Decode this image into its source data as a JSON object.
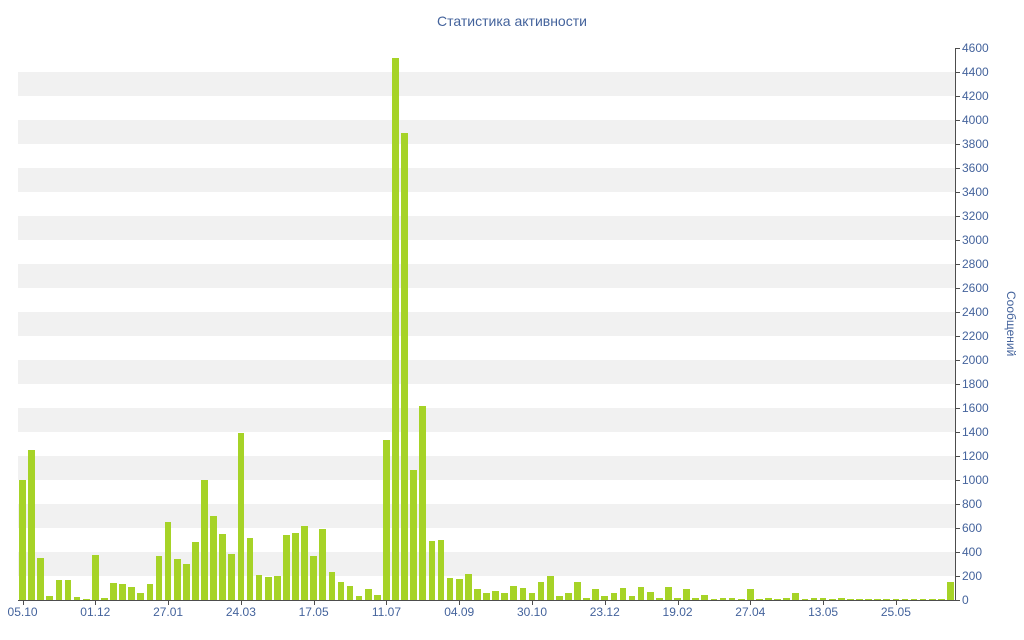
{
  "window": {
    "title": "Статистика активности"
  },
  "chart_data": {
    "type": "bar",
    "title": "Статистика активности",
    "xlabel": "",
    "ylabel": "Сообщений",
    "ylim": [
      0,
      4600
    ],
    "y_tick_step": 200,
    "grid": "striped-bands",
    "legend": "none",
    "bar_color": "#a6d327",
    "label_color": "#44639c",
    "axis_color": "#4d4d4d",
    "stripe_color": "#f1f1f1",
    "x_label_every": 8,
    "x_tick_labels": [
      "05.10",
      "01.12",
      "27.01",
      "24.03",
      "17.05",
      "11.07",
      "04.09",
      "30.10",
      "23.12",
      "19.02",
      "27.04",
      "13.05",
      "25.05"
    ],
    "values": [
      1000,
      1250,
      350,
      30,
      165,
      165,
      25,
      10,
      375,
      20,
      140,
      130,
      110,
      60,
      130,
      370,
      650,
      340,
      300,
      480,
      1000,
      700,
      550,
      380,
      1390,
      520,
      210,
      195,
      200,
      545,
      560,
      620,
      370,
      590,
      230,
      150,
      120,
      30,
      90,
      40,
      1330,
      4520,
      3890,
      1080,
      1620,
      490,
      500,
      180,
      175,
      220,
      90,
      60,
      75,
      60,
      120,
      100,
      60,
      150,
      200,
      30,
      60,
      150,
      20,
      90,
      30,
      60,
      100,
      30,
      110,
      70,
      20,
      110,
      15,
      90,
      20,
      40,
      10,
      20,
      15,
      10,
      90,
      10,
      15,
      10,
      20,
      60,
      10,
      15,
      20,
      10,
      15,
      5,
      10,
      5,
      10,
      5,
      10,
      5,
      10,
      5,
      8,
      10,
      150
    ]
  }
}
